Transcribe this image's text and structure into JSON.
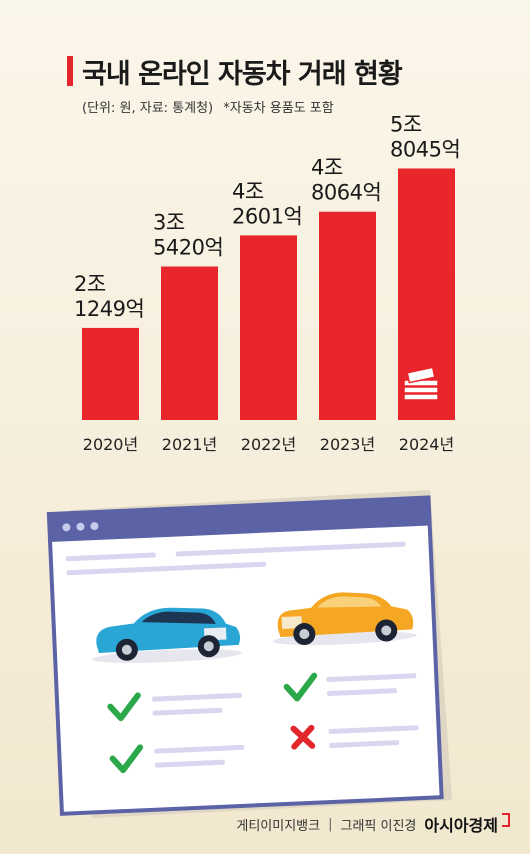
{
  "header": {
    "title": "국내 온라인 자동차 거래 현황",
    "subtitle_unit": "(단위: 원, 자료: 통계청)",
    "subtitle_note": "*자동차 용품도 포함"
  },
  "chart_data": {
    "type": "bar",
    "title": "국내 온라인 자동차 거래 현황",
    "categories": [
      "2020년",
      "2021년",
      "2022년",
      "2023년",
      "2024년"
    ],
    "values": [
      21249,
      35420,
      42601,
      48064,
      58045
    ],
    "value_unit": "억 원",
    "data_labels": [
      [
        "2조",
        "1249억"
      ],
      [
        "3조",
        "5420억"
      ],
      [
        "4조",
        "2601억"
      ],
      [
        "4조",
        "8064억"
      ],
      [
        "5조",
        "8045억"
      ]
    ],
    "ylim": [
      0,
      60000
    ],
    "grid": false,
    "bar_color": "#e8262b"
  },
  "illustration": {
    "window_color": "#5b63a6",
    "card_color": "#ffffff",
    "car_left_color": "#2aa6d6",
    "car_right_color": "#f5a623",
    "check_color": "#2aa84a",
    "cross_color": "#e3262b"
  },
  "footer": {
    "photo_credit": "게티이미지뱅크",
    "separator": "|",
    "graphic_credit": "그래픽 이진경",
    "brand": "아시아경제"
  }
}
